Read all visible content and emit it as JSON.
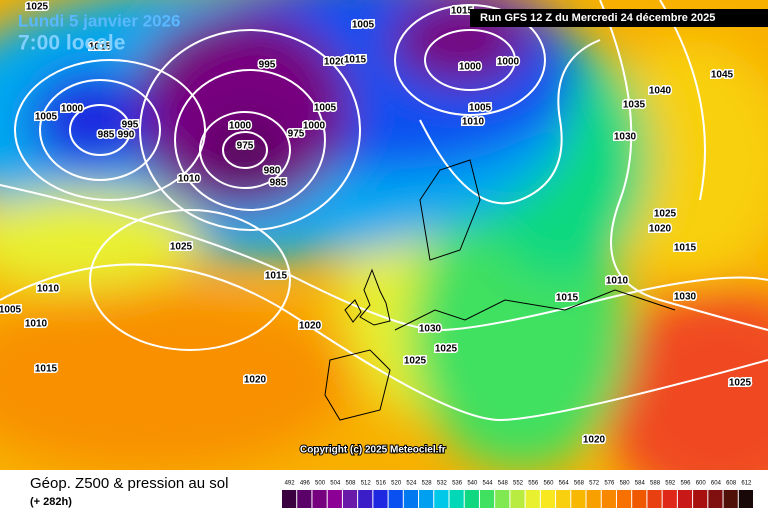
{
  "header": {
    "date": "Lundi 5 janvier 2026",
    "time": "7:00 locale",
    "run": "Run GFS 12 Z du Mercredi 24 décembre 2025"
  },
  "copyright": "Copyright (c) 2025 Meteociel.fr",
  "footer": {
    "title": "Géop. Z500 & pression au sol",
    "lead": "(+ 282h)"
  },
  "scale": {
    "values": [
      492,
      496,
      500,
      504,
      508,
      512,
      516,
      520,
      524,
      528,
      532,
      536,
      540,
      544,
      548,
      552,
      556,
      560,
      564,
      568,
      572,
      576,
      580,
      584,
      588,
      592,
      596,
      600,
      604,
      608,
      612
    ],
    "colors": [
      "#3a0040",
      "#5a0068",
      "#76007e",
      "#8c0096",
      "#6a1aa8",
      "#3c1ec8",
      "#1e28e0",
      "#0a50f0",
      "#0078f0",
      "#00a0f0",
      "#00c8e8",
      "#00d8b8",
      "#10d880",
      "#40e060",
      "#80e850",
      "#b8ec40",
      "#e8f030",
      "#f8e820",
      "#f8d010",
      "#f8b800",
      "#f8a000",
      "#f88800",
      "#f87000",
      "#f05800",
      "#e84010",
      "#e02818",
      "#c81818",
      "#a81010",
      "#801010",
      "#501008",
      "#180808"
    ]
  },
  "isobar_labels": [
    1025,
    1015,
    1005,
    995,
    1020,
    1015,
    1000,
    1000,
    1015,
    1045,
    1040,
    1035,
    1030,
    1000,
    1005,
    995,
    985,
    990,
    1000,
    975,
    975,
    1000,
    1005,
    1005,
    1010,
    980,
    985,
    1010,
    1025,
    1015,
    1025,
    1020,
    1015,
    1010,
    1015,
    1030,
    1010,
    1005,
    1010,
    1020,
    1030,
    1025,
    1025,
    1015,
    1020,
    1025,
    1020
  ]
}
